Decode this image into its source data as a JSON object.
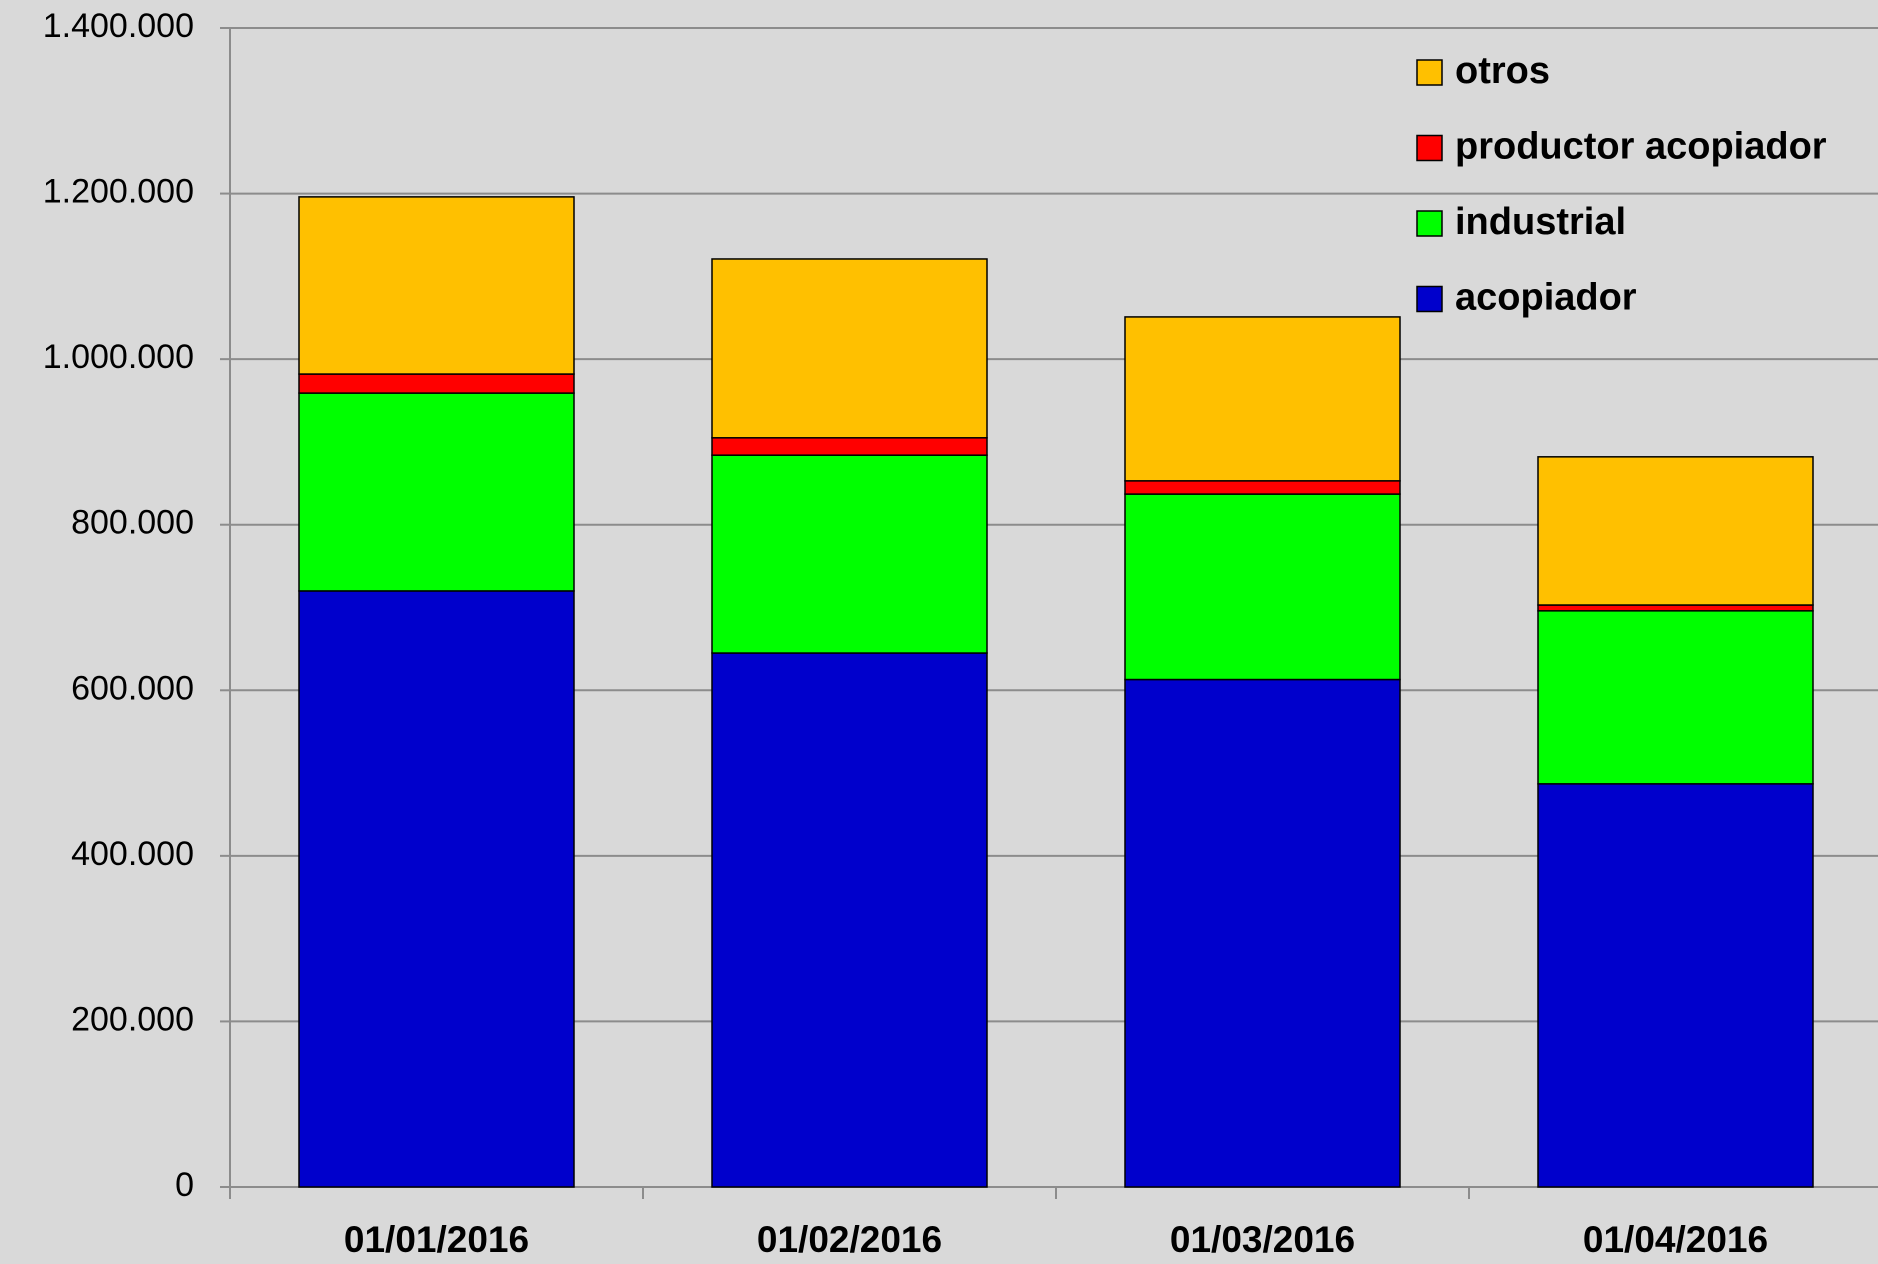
{
  "chart_data": {
    "type": "stacked_bar",
    "categories": [
      "01/01/2016",
      "01/02/2016",
      "01/03/2016",
      "01/04/2016"
    ],
    "series": [
      {
        "name": "acopiador",
        "color": "#0000cc",
        "values": [
          720000,
          645000,
          613000,
          487000
        ]
      },
      {
        "name": "industrial",
        "color": "#00ff00",
        "values": [
          239000,
          239000,
          224000,
          209000
        ]
      },
      {
        "name": "productor acopiador",
        "color": "#ff0000",
        "values": [
          23000,
          21000,
          16000,
          7000
        ]
      },
      {
        "name": "otros",
        "color": "#ffc000",
        "values": [
          214000,
          216000,
          198000,
          179000
        ]
      }
    ],
    "ylim": [
      0,
      1400000
    ],
    "yticks": [
      0,
      {
        "value": 200000,
        "label": "200.000"
      },
      {
        "value": 400000,
        "label": "400.000"
      },
      {
        "value": 600000,
        "label": "600.000"
      },
      {
        "value": 800000,
        "label": "800.000"
      },
      {
        "value": 1000000,
        "label": "1.000.000"
      },
      {
        "value": 1200000,
        "label": "1.200.000"
      },
      {
        "value": 1400000,
        "label": "1.400.000"
      }
    ],
    "grid": true,
    "legend": "upper right"
  }
}
